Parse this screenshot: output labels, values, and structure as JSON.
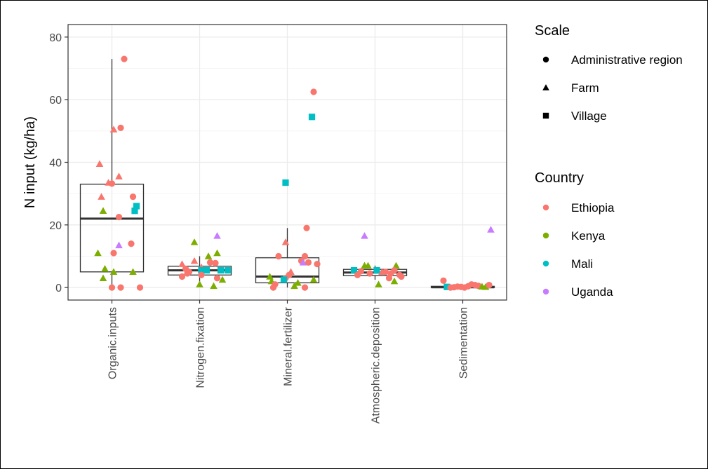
{
  "chart_data": {
    "type": "boxplot",
    "title": "",
    "xlabel": "",
    "ylabel": "N input (kg/ha)",
    "ylim": [
      -4,
      84
    ],
    "y_ticks": [
      0,
      20,
      40,
      60,
      80
    ],
    "categories": [
      "Organic.inputs",
      "Nitrogen.fixation",
      "Mineral.fertilizer",
      "Atmospheric.deposition",
      "Sedimentation"
    ],
    "boxes": [
      {
        "category": "Organic.inputs",
        "q1": 5,
        "median": 22,
        "q3": 33,
        "whisker_low": 0,
        "whisker_high": 73
      },
      {
        "category": "Nitrogen.fixation",
        "q1": 4,
        "median": 5.5,
        "q3": 6.8,
        "whisker_low": 0.5,
        "whisker_high": 10
      },
      {
        "category": "Mineral.fertilizer",
        "q1": 1.5,
        "median": 3.5,
        "q3": 9.5,
        "whisker_low": 0,
        "whisker_high": 19
      },
      {
        "category": "Atmospheric.deposition",
        "q1": 3.8,
        "median": 4.8,
        "q3": 5.8,
        "whisker_low": 2.5,
        "whisker_high": 7
      },
      {
        "category": "Sedimentation",
        "q1": 0,
        "median": 0.1,
        "q3": 0.4,
        "whisker_low": 0,
        "whisker_high": 1
      }
    ],
    "points": [
      {
        "category": "Organic.inputs",
        "jitter": 0.35,
        "y": 73,
        "country": "Ethiopia",
        "scale": "Administrative region"
      },
      {
        "category": "Organic.inputs",
        "jitter": 0.05,
        "y": 50.5,
        "country": "Ethiopia",
        "scale": "Farm"
      },
      {
        "category": "Organic.inputs",
        "jitter": 0.25,
        "y": 51,
        "country": "Ethiopia",
        "scale": "Administrative region"
      },
      {
        "category": "Organic.inputs",
        "jitter": -0.35,
        "y": 39.5,
        "country": "Ethiopia",
        "scale": "Farm"
      },
      {
        "category": "Organic.inputs",
        "jitter": 0.2,
        "y": 35.5,
        "country": "Ethiopia",
        "scale": "Farm"
      },
      {
        "category": "Organic.inputs",
        "jitter": -0.1,
        "y": 33.5,
        "country": "Ethiopia",
        "scale": "Farm"
      },
      {
        "category": "Organic.inputs",
        "jitter": 0.0,
        "y": 33.2,
        "country": "Ethiopia",
        "scale": "Administrative region"
      },
      {
        "category": "Organic.inputs",
        "jitter": -0.3,
        "y": 29,
        "country": "Ethiopia",
        "scale": "Farm"
      },
      {
        "category": "Organic.inputs",
        "jitter": 0.6,
        "y": 29,
        "country": "Ethiopia",
        "scale": "Administrative region"
      },
      {
        "category": "Organic.inputs",
        "jitter": 0.7,
        "y": 26,
        "country": "Mali",
        "scale": "Village"
      },
      {
        "category": "Organic.inputs",
        "jitter": 0.65,
        "y": 24.5,
        "country": "Mali",
        "scale": "Village"
      },
      {
        "category": "Organic.inputs",
        "jitter": -0.25,
        "y": 24.5,
        "country": "Kenya",
        "scale": "Farm"
      },
      {
        "category": "Organic.inputs",
        "jitter": 0.2,
        "y": 22.5,
        "country": "Ethiopia",
        "scale": "Administrative region"
      },
      {
        "category": "Organic.inputs",
        "jitter": 0.55,
        "y": 14,
        "country": "Ethiopia",
        "scale": "Administrative region"
      },
      {
        "category": "Organic.inputs",
        "jitter": 0.2,
        "y": 13.5,
        "country": "Uganda",
        "scale": "Farm"
      },
      {
        "category": "Organic.inputs",
        "jitter": 0.05,
        "y": 11,
        "country": "Ethiopia",
        "scale": "Administrative region"
      },
      {
        "category": "Organic.inputs",
        "jitter": -0.4,
        "y": 11,
        "country": "Kenya",
        "scale": "Farm"
      },
      {
        "category": "Organic.inputs",
        "jitter": -0.2,
        "y": 6,
        "country": "Kenya",
        "scale": "Farm"
      },
      {
        "category": "Organic.inputs",
        "jitter": 0.05,
        "y": 5,
        "country": "Kenya",
        "scale": "Farm"
      },
      {
        "category": "Organic.inputs",
        "jitter": 0.6,
        "y": 5,
        "country": "Kenya",
        "scale": "Farm"
      },
      {
        "category": "Organic.inputs",
        "jitter": -0.25,
        "y": 3,
        "country": "Kenya",
        "scale": "Farm"
      },
      {
        "category": "Organic.inputs",
        "jitter": 0.0,
        "y": 0,
        "country": "Ethiopia",
        "scale": "Administrative region"
      },
      {
        "category": "Organic.inputs",
        "jitter": 0.25,
        "y": 0,
        "country": "Ethiopia",
        "scale": "Administrative region"
      },
      {
        "category": "Organic.inputs",
        "jitter": 0.8,
        "y": 0,
        "country": "Ethiopia",
        "scale": "Administrative region"
      },
      {
        "category": "Nitrogen.fixation",
        "jitter": -0.15,
        "y": 14.5,
        "country": "Kenya",
        "scale": "Farm"
      },
      {
        "category": "Nitrogen.fixation",
        "jitter": 0.5,
        "y": 16.5,
        "country": "Uganda",
        "scale": "Farm"
      },
      {
        "category": "Nitrogen.fixation",
        "jitter": 0.5,
        "y": 11,
        "country": "Kenya",
        "scale": "Farm"
      },
      {
        "category": "Nitrogen.fixation",
        "jitter": 0.25,
        "y": 10,
        "country": "Kenya",
        "scale": "Farm"
      },
      {
        "category": "Nitrogen.fixation",
        "jitter": 0.3,
        "y": 8,
        "country": "Ethiopia",
        "scale": "Administrative region"
      },
      {
        "category": "Nitrogen.fixation",
        "jitter": -0.5,
        "y": 7.5,
        "country": "Ethiopia",
        "scale": "Farm"
      },
      {
        "category": "Nitrogen.fixation",
        "jitter": -0.15,
        "y": 8.5,
        "country": "Ethiopia",
        "scale": "Farm"
      },
      {
        "category": "Nitrogen.fixation",
        "jitter": 0.45,
        "y": 7.8,
        "country": "Ethiopia",
        "scale": "Administrative region"
      },
      {
        "category": "Nitrogen.fixation",
        "jitter": 0.05,
        "y": 6.5,
        "country": "Ethiopia",
        "scale": "Farm"
      },
      {
        "category": "Nitrogen.fixation",
        "jitter": -0.4,
        "y": 6,
        "country": "Ethiopia",
        "scale": "Administrative region"
      },
      {
        "category": "Nitrogen.fixation",
        "jitter": -0.3,
        "y": 5,
        "country": "Ethiopia",
        "scale": "Administrative region"
      },
      {
        "category": "Nitrogen.fixation",
        "jitter": 0.2,
        "y": 5.5,
        "country": "Mali",
        "scale": "Village"
      },
      {
        "category": "Nitrogen.fixation",
        "jitter": 0.6,
        "y": 5.5,
        "country": "Mali",
        "scale": "Village"
      },
      {
        "category": "Nitrogen.fixation",
        "jitter": 0.8,
        "y": 5.5,
        "country": "Mali",
        "scale": "Village"
      },
      {
        "category": "Nitrogen.fixation",
        "jitter": 0.05,
        "y": 5.5,
        "country": "Mali",
        "scale": "Village"
      },
      {
        "category": "Nitrogen.fixation",
        "jitter": -0.35,
        "y": 4.5,
        "country": "Ethiopia",
        "scale": "Administrative region"
      },
      {
        "category": "Nitrogen.fixation",
        "jitter": 0.05,
        "y": 4,
        "country": "Ethiopia",
        "scale": "Administrative region"
      },
      {
        "category": "Nitrogen.fixation",
        "jitter": -0.5,
        "y": 3.5,
        "country": "Ethiopia",
        "scale": "Administrative region"
      },
      {
        "category": "Nitrogen.fixation",
        "jitter": 0.5,
        "y": 3,
        "country": "Ethiopia",
        "scale": "Administrative region"
      },
      {
        "category": "Nitrogen.fixation",
        "jitter": 0.65,
        "y": 2.5,
        "country": "Kenya",
        "scale": "Farm"
      },
      {
        "category": "Nitrogen.fixation",
        "jitter": 0.0,
        "y": 1,
        "country": "Kenya",
        "scale": "Farm"
      },
      {
        "category": "Nitrogen.fixation",
        "jitter": 0.4,
        "y": 0.5,
        "country": "Kenya",
        "scale": "Farm"
      },
      {
        "category": "Mineral.fertilizer",
        "jitter": 0.75,
        "y": 62.5,
        "country": "Ethiopia",
        "scale": "Administrative region"
      },
      {
        "category": "Mineral.fertilizer",
        "jitter": 0.7,
        "y": 54.5,
        "country": "Mali",
        "scale": "Village"
      },
      {
        "category": "Mineral.fertilizer",
        "jitter": -0.05,
        "y": 33.5,
        "country": "Mali",
        "scale": "Village"
      },
      {
        "category": "Mineral.fertilizer",
        "jitter": 0.55,
        "y": 19,
        "country": "Ethiopia",
        "scale": "Administrative region"
      },
      {
        "category": "Mineral.fertilizer",
        "jitter": -0.05,
        "y": 14.5,
        "country": "Ethiopia",
        "scale": "Farm"
      },
      {
        "category": "Mineral.fertilizer",
        "jitter": -0.25,
        "y": 10,
        "country": "Ethiopia",
        "scale": "Administrative region"
      },
      {
        "category": "Mineral.fertilizer",
        "jitter": 0.5,
        "y": 10,
        "country": "Ethiopia",
        "scale": "Administrative region"
      },
      {
        "category": "Mineral.fertilizer",
        "jitter": 0.4,
        "y": 8.5,
        "country": "Ethiopia",
        "scale": "Administrative region"
      },
      {
        "category": "Mineral.fertilizer",
        "jitter": 0.45,
        "y": 8,
        "country": "Uganda",
        "scale": "Farm"
      },
      {
        "category": "Mineral.fertilizer",
        "jitter": 0.6,
        "y": 8,
        "country": "Ethiopia",
        "scale": "Administrative region"
      },
      {
        "category": "Mineral.fertilizer",
        "jitter": 0.85,
        "y": 7.5,
        "country": "Ethiopia",
        "scale": "Administrative region"
      },
      {
        "category": "Mineral.fertilizer",
        "jitter": 0.1,
        "y": 5,
        "country": "Ethiopia",
        "scale": "Farm"
      },
      {
        "category": "Mineral.fertilizer",
        "jitter": 0.05,
        "y": 4,
        "country": "Ethiopia",
        "scale": "Administrative region"
      },
      {
        "category": "Mineral.fertilizer",
        "jitter": -0.5,
        "y": 3.5,
        "country": "Kenya",
        "scale": "Farm"
      },
      {
        "category": "Mineral.fertilizer",
        "jitter": -0.05,
        "y": 3,
        "country": "Ethiopia",
        "scale": "Administrative region"
      },
      {
        "category": "Mineral.fertilizer",
        "jitter": -0.1,
        "y": 2.5,
        "country": "Mali",
        "scale": "Village"
      },
      {
        "category": "Mineral.fertilizer",
        "jitter": 0.75,
        "y": 2.5,
        "country": "Kenya",
        "scale": "Farm"
      },
      {
        "category": "Mineral.fertilizer",
        "jitter": -0.45,
        "y": 2,
        "country": "Kenya",
        "scale": "Farm"
      },
      {
        "category": "Mineral.fertilizer",
        "jitter": -0.35,
        "y": 1,
        "country": "Ethiopia",
        "scale": "Administrative region"
      },
      {
        "category": "Mineral.fertilizer",
        "jitter": 0.3,
        "y": 1.5,
        "country": "Kenya",
        "scale": "Farm"
      },
      {
        "category": "Mineral.fertilizer",
        "jitter": 0.2,
        "y": 0.5,
        "country": "Kenya",
        "scale": "Farm"
      },
      {
        "category": "Mineral.fertilizer",
        "jitter": 0.5,
        "y": 0,
        "country": "Ethiopia",
        "scale": "Administrative region"
      },
      {
        "category": "Mineral.fertilizer",
        "jitter": -0.4,
        "y": 0,
        "country": "Ethiopia",
        "scale": "Administrative region"
      },
      {
        "category": "Atmospheric.deposition",
        "jitter": -0.3,
        "y": 16.5,
        "country": "Uganda",
        "scale": "Farm"
      },
      {
        "category": "Atmospheric.deposition",
        "jitter": -0.3,
        "y": 7,
        "country": "Kenya",
        "scale": "Farm"
      },
      {
        "category": "Atmospheric.deposition",
        "jitter": -0.2,
        "y": 7,
        "country": "Kenya",
        "scale": "Farm"
      },
      {
        "category": "Atmospheric.deposition",
        "jitter": 0.6,
        "y": 7,
        "country": "Kenya",
        "scale": "Farm"
      },
      {
        "category": "Atmospheric.deposition",
        "jitter": -0.6,
        "y": 5.5,
        "country": "Mali",
        "scale": "Village"
      },
      {
        "category": "Atmospheric.deposition",
        "jitter": -0.4,
        "y": 5.2,
        "country": "Ethiopia",
        "scale": "Administrative region"
      },
      {
        "category": "Atmospheric.deposition",
        "jitter": 0.05,
        "y": 5.5,
        "country": "Mali",
        "scale": "Village"
      },
      {
        "category": "Atmospheric.deposition",
        "jitter": 0.2,
        "y": 5,
        "country": "Ethiopia",
        "scale": "Farm"
      },
      {
        "category": "Atmospheric.deposition",
        "jitter": 0.3,
        "y": 5,
        "country": "Ethiopia",
        "scale": "Administrative region"
      },
      {
        "category": "Atmospheric.deposition",
        "jitter": 0.55,
        "y": 5.5,
        "country": "Ethiopia",
        "scale": "Administrative region"
      },
      {
        "category": "Atmospheric.deposition",
        "jitter": 0.45,
        "y": 4.5,
        "country": "Ethiopia",
        "scale": "Administrative region"
      },
      {
        "category": "Atmospheric.deposition",
        "jitter": -0.5,
        "y": 4,
        "country": "Ethiopia",
        "scale": "Administrative region"
      },
      {
        "category": "Atmospheric.deposition",
        "jitter": -0.15,
        "y": 4.5,
        "country": "Ethiopia",
        "scale": "Administrative region"
      },
      {
        "category": "Atmospheric.deposition",
        "jitter": 0.7,
        "y": 4,
        "country": "Ethiopia",
        "scale": "Administrative region"
      },
      {
        "category": "Atmospheric.deposition",
        "jitter": 0.75,
        "y": 3.5,
        "country": "Ethiopia",
        "scale": "Administrative region"
      },
      {
        "category": "Atmospheric.deposition",
        "jitter": 0.4,
        "y": 3,
        "country": "Ethiopia",
        "scale": "Administrative region"
      },
      {
        "category": "Atmospheric.deposition",
        "jitter": 0.55,
        "y": 2,
        "country": "Kenya",
        "scale": "Farm"
      },
      {
        "category": "Atmospheric.deposition",
        "jitter": 0.1,
        "y": 1,
        "country": "Kenya",
        "scale": "Farm"
      },
      {
        "category": "Sedimentation",
        "jitter": -0.55,
        "y": 2.2,
        "country": "Ethiopia",
        "scale": "Administrative region"
      },
      {
        "category": "Sedimentation",
        "jitter": 0.8,
        "y": 18.5,
        "country": "Uganda",
        "scale": "Farm"
      },
      {
        "category": "Sedimentation",
        "jitter": -0.45,
        "y": 0.2,
        "country": "Mali",
        "scale": "Village"
      },
      {
        "category": "Sedimentation",
        "jitter": -0.35,
        "y": 0,
        "country": "Ethiopia",
        "scale": "Administrative region"
      },
      {
        "category": "Sedimentation",
        "jitter": -0.25,
        "y": 0.1,
        "country": "Ethiopia",
        "scale": "Administrative region"
      },
      {
        "category": "Sedimentation",
        "jitter": -0.15,
        "y": 0.3,
        "country": "Ethiopia",
        "scale": "Administrative region"
      },
      {
        "category": "Sedimentation",
        "jitter": -0.05,
        "y": 0.2,
        "country": "Ethiopia",
        "scale": "Administrative region"
      },
      {
        "category": "Sedimentation",
        "jitter": 0.05,
        "y": 0,
        "country": "Ethiopia",
        "scale": "Administrative region"
      },
      {
        "category": "Sedimentation",
        "jitter": 0.15,
        "y": 0.4,
        "country": "Ethiopia",
        "scale": "Administrative region"
      },
      {
        "category": "Sedimentation",
        "jitter": 0.25,
        "y": 1,
        "country": "Ethiopia",
        "scale": "Administrative region"
      },
      {
        "category": "Sedimentation",
        "jitter": 0.35,
        "y": 0.8,
        "country": "Ethiopia",
        "scale": "Administrative region"
      },
      {
        "category": "Sedimentation",
        "jitter": 0.45,
        "y": 0.5,
        "country": "Ethiopia",
        "scale": "Administrative region"
      },
      {
        "category": "Sedimentation",
        "jitter": 0.55,
        "y": 0.3,
        "country": "Kenya",
        "scale": "Farm"
      },
      {
        "category": "Sedimentation",
        "jitter": 0.65,
        "y": 0.2,
        "country": "Kenya",
        "scale": "Farm"
      },
      {
        "category": "Sedimentation",
        "jitter": 0.75,
        "y": 0.8,
        "country": "Ethiopia",
        "scale": "Administrative region"
      }
    ],
    "legend": {
      "position": "right",
      "scale": {
        "title": "Scale",
        "items": [
          {
            "label": "Administrative region",
            "shape": "circle"
          },
          {
            "label": "Farm",
            "shape": "triangle"
          },
          {
            "label": "Village",
            "shape": "square"
          }
        ]
      },
      "country": {
        "title": "Country",
        "items": [
          {
            "label": "Ethiopia",
            "color": "#F8766D"
          },
          {
            "label": "Kenya",
            "color": "#7CAE00"
          },
          {
            "label": "Mali",
            "color": "#00BFC4"
          },
          {
            "label": "Uganda",
            "color": "#C77CFF"
          }
        ]
      }
    },
    "grid": true
  }
}
